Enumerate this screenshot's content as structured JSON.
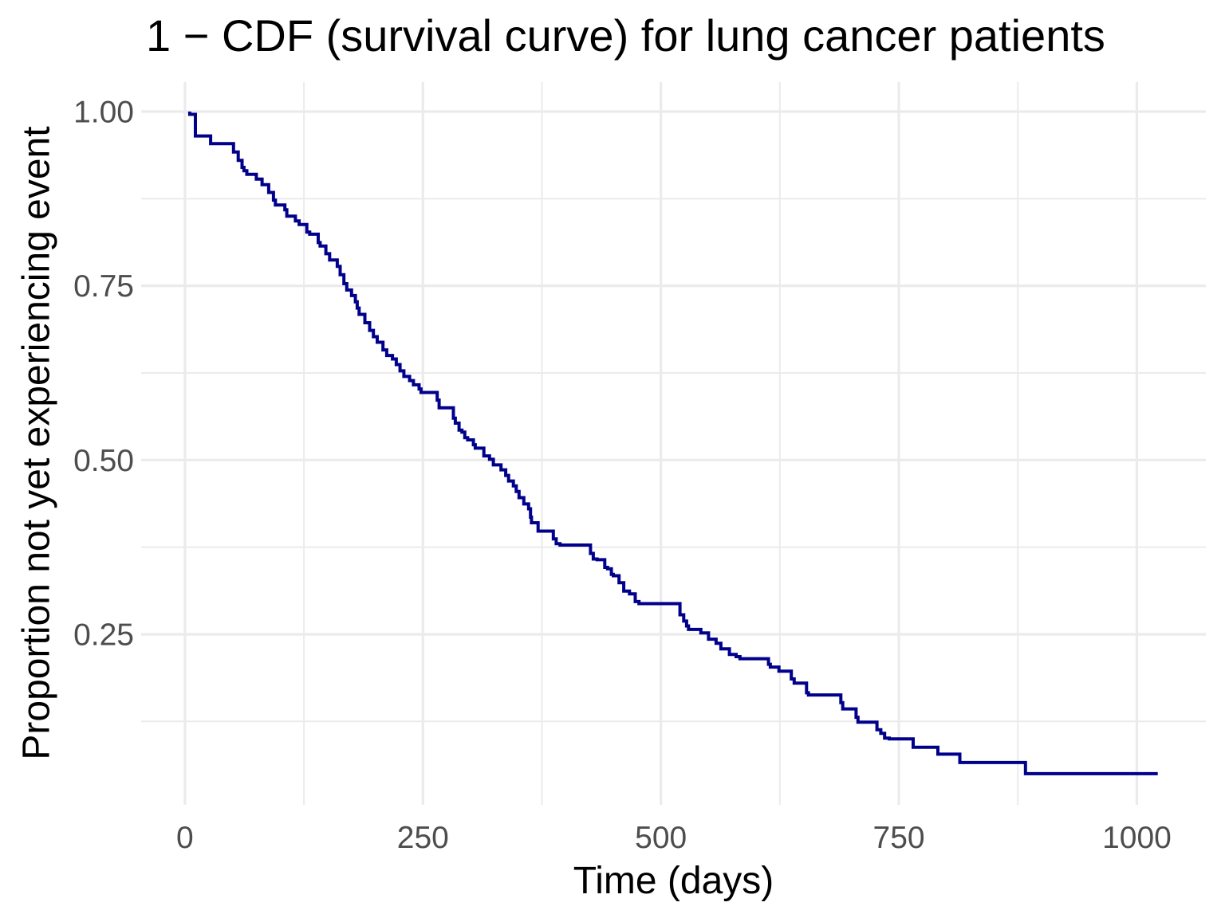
{
  "chart_data": {
    "type": "line",
    "subtype": "step-survival-curve",
    "title": "1 − CDF (survival curve) for lung cancer patients",
    "xlabel": "Time (days)",
    "ylabel": "Proportion not yet experiencing event",
    "legend": "none",
    "grid": "on",
    "background_color": "#FFFFFF",
    "grid_color": "#EBEBEB",
    "tick_label_color": "#4D4D4D",
    "title_color": "#000000",
    "xlim": [
      -46,
      1072.5
    ],
    "ylim": [
      0.0053,
      1.0423
    ],
    "x_ticks": [
      0,
      250,
      500,
      750,
      1000
    ],
    "x_tick_labels": [
      "0",
      "250",
      "500",
      "750",
      "1000"
    ],
    "x_minor_ticks": [
      125,
      375,
      625,
      875
    ],
    "y_ticks": [
      1.0,
      0.75,
      0.5,
      0.25
    ],
    "y_tick_labels": [
      "1.00",
      "0.75",
      "0.50",
      "0.25"
    ],
    "y_minor_ticks": [
      0.875,
      0.625,
      0.375,
      0.125
    ],
    "series": [
      {
        "name": "survival-probability",
        "color": "#00008B",
        "line_width": 4,
        "steps": [
          [
            5,
            1.0
          ],
          [
            5,
            0.996
          ],
          [
            11,
            0.965
          ],
          [
            27,
            0.954
          ],
          [
            51,
            0.942
          ],
          [
            56,
            0.93
          ],
          [
            60,
            0.92
          ],
          [
            62,
            0.915
          ],
          [
            65,
            0.91
          ],
          [
            75,
            0.903
          ],
          [
            81,
            0.895
          ],
          [
            88,
            0.884
          ],
          [
            93,
            0.873
          ],
          [
            95,
            0.866
          ],
          [
            105,
            0.859
          ],
          [
            107,
            0.85
          ],
          [
            116,
            0.843
          ],
          [
            120,
            0.838
          ],
          [
            128,
            0.827
          ],
          [
            131,
            0.824
          ],
          [
            140,
            0.812
          ],
          [
            142,
            0.807
          ],
          [
            148,
            0.796
          ],
          [
            152,
            0.787
          ],
          [
            160,
            0.778
          ],
          [
            163,
            0.766
          ],
          [
            167,
            0.753
          ],
          [
            170,
            0.744
          ],
          [
            175,
            0.736
          ],
          [
            179,
            0.727
          ],
          [
            181,
            0.718
          ],
          [
            183,
            0.709
          ],
          [
            189,
            0.697
          ],
          [
            194,
            0.686
          ],
          [
            198,
            0.677
          ],
          [
            202,
            0.669
          ],
          [
            208,
            0.658
          ],
          [
            212,
            0.65
          ],
          [
            218,
            0.645
          ],
          [
            222,
            0.637
          ],
          [
            226,
            0.628
          ],
          [
            230,
            0.62
          ],
          [
            236,
            0.614
          ],
          [
            240,
            0.608
          ],
          [
            246,
            0.602
          ],
          [
            248,
            0.597
          ],
          [
            265,
            0.586
          ],
          [
            267,
            0.575
          ],
          [
            282,
            0.56
          ],
          [
            284,
            0.553
          ],
          [
            288,
            0.543
          ],
          [
            291,
            0.54
          ],
          [
            294,
            0.532
          ],
          [
            297,
            0.529
          ],
          [
            303,
            0.522
          ],
          [
            305,
            0.517
          ],
          [
            314,
            0.506
          ],
          [
            320,
            0.501
          ],
          [
            324,
            0.493
          ],
          [
            332,
            0.486
          ],
          [
            337,
            0.478
          ],
          [
            340,
            0.47
          ],
          [
            345,
            0.463
          ],
          [
            348,
            0.455
          ],
          [
            351,
            0.446
          ],
          [
            356,
            0.437
          ],
          [
            361,
            0.43
          ],
          [
            363,
            0.418
          ],
          [
            364,
            0.41
          ],
          [
            371,
            0.398
          ],
          [
            387,
            0.387
          ],
          [
            390,
            0.38
          ],
          [
            394,
            0.378
          ],
          [
            426,
            0.366
          ],
          [
            429,
            0.358
          ],
          [
            433,
            0.357
          ],
          [
            441,
            0.346
          ],
          [
            444,
            0.344
          ],
          [
            448,
            0.336
          ],
          [
            450,
            0.334
          ],
          [
            456,
            0.324
          ],
          [
            461,
            0.312
          ],
          [
            467,
            0.308
          ],
          [
            473,
            0.297
          ],
          [
            477,
            0.294
          ],
          [
            520,
            0.278
          ],
          [
            524,
            0.269
          ],
          [
            527,
            0.262
          ],
          [
            529,
            0.257
          ],
          [
            542,
            0.252
          ],
          [
            550,
            0.243
          ],
          [
            558,
            0.237
          ],
          [
            563,
            0.229
          ],
          [
            572,
            0.221
          ],
          [
            579,
            0.218
          ],
          [
            583,
            0.215
          ],
          [
            613,
            0.207
          ],
          [
            615,
            0.203
          ],
          [
            624,
            0.197
          ],
          [
            637,
            0.186
          ],
          [
            640,
            0.18
          ],
          [
            653,
            0.166
          ],
          [
            655,
            0.163
          ],
          [
            689,
            0.152
          ],
          [
            691,
            0.143
          ],
          [
            705,
            0.131
          ],
          [
            707,
            0.124
          ],
          [
            727,
            0.113
          ],
          [
            731,
            0.108
          ],
          [
            735,
            0.101
          ],
          [
            740,
            0.1
          ],
          [
            765,
            0.088
          ],
          [
            791,
            0.078
          ],
          [
            814,
            0.066
          ],
          [
            883,
            0.05
          ],
          [
            1022,
            0.05
          ]
        ]
      }
    ]
  }
}
